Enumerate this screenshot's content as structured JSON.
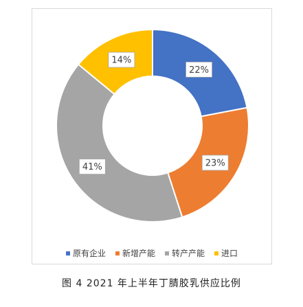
{
  "caption": "图 4  2021 年上半年丁腈胶乳供应比例",
  "chart_data": {
    "type": "pie",
    "donut": true,
    "start_angle_deg": 0,
    "direction": "clockwise",
    "title": "",
    "legend_position": "bottom",
    "slices": [
      {
        "name": "原有企业",
        "value": 22,
        "label": "22%",
        "color": "#4472C4"
      },
      {
        "name": "新增产能",
        "value": 23,
        "label": "23%",
        "color": "#ED7D31"
      },
      {
        "name": "转产产能",
        "value": 41,
        "label": "41%",
        "color": "#A5A5A5"
      },
      {
        "name": "进口",
        "value": 14,
        "label": "14%",
        "color": "#FFC000"
      }
    ]
  }
}
